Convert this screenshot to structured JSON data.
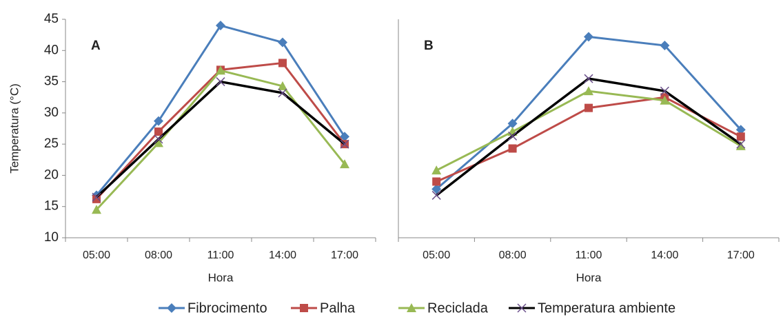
{
  "chart_data": [
    {
      "type": "line",
      "title": "A",
      "x_label": "Hora",
      "y_label": "Temperatura (°C)",
      "categories": [
        "05:00",
        "08:00",
        "11:00",
        "14:00",
        "17:00"
      ],
      "ylim": [
        10,
        45
      ],
      "yticks": [
        10,
        15,
        20,
        25,
        30,
        35,
        40,
        45
      ],
      "grid": false,
      "series": [
        {
          "name": "Fibrocimento",
          "color": "#4a7ebb",
          "marker": "diamond",
          "values": [
            16.8,
            28.7,
            44,
            41.3,
            26.2
          ]
        },
        {
          "name": "Palha",
          "color": "#be4b48",
          "marker": "square",
          "values": [
            16.2,
            27,
            36.9,
            38,
            25
          ]
        },
        {
          "name": "Reciclada",
          "color": "#98b954",
          "marker": "triangle",
          "values": [
            14.5,
            25.2,
            36.8,
            34.3,
            21.8
          ]
        },
        {
          "name": "Temperatura ambiente",
          "color": "#000000",
          "marker": "x",
          "values": [
            16.5,
            25.8,
            35,
            33.2,
            25
          ]
        }
      ]
    },
    {
      "type": "line",
      "title": "B",
      "x_label": "Hora",
      "categories": [
        "05:00",
        "08:00",
        "11:00",
        "14:00",
        "17:00"
      ],
      "ylim": [
        10,
        45
      ],
      "grid": false,
      "series": [
        {
          "color": "#4a7ebb",
          "marker": "diamond",
          "values": [
            17.8,
            28.3,
            42.2,
            40.8,
            27.3
          ]
        },
        {
          "color": "#be4b48",
          "marker": "square",
          "values": [
            19,
            24.3,
            30.8,
            32.5,
            26.2
          ]
        },
        {
          "color": "#98b954",
          "marker": "triangle",
          "values": [
            20.8,
            27,
            33.5,
            32,
            24.7
          ]
        },
        {
          "color": "#000000",
          "marker": "x",
          "values": [
            16.8,
            26.3,
            35.5,
            33.5,
            25
          ]
        }
      ]
    }
  ]
}
